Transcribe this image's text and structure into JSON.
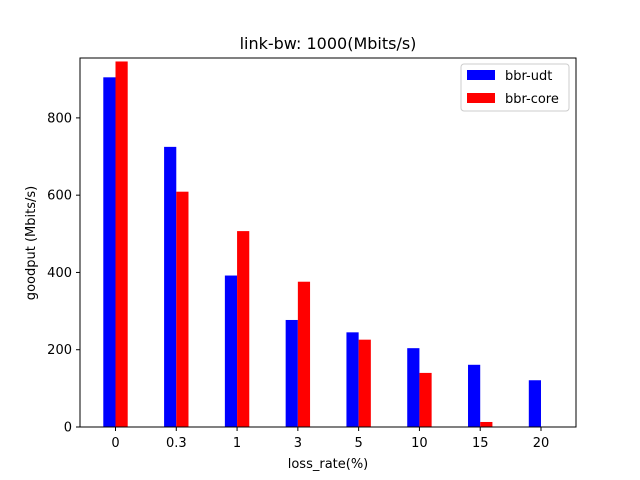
{
  "chart_data": {
    "type": "bar",
    "title": "link-bw: 1000(Mbits/s)",
    "xlabel": "loss_rate(%)",
    "ylabel": "goodput (Mbits/s)",
    "categories": [
      "0",
      "0.3",
      "1",
      "3",
      "5",
      "10",
      "15",
      "20"
    ],
    "ylim": [
      0,
      955
    ],
    "yticks": [
      0,
      200,
      400,
      600,
      800
    ],
    "grid": false,
    "legend_position": "top-right",
    "series": [
      {
        "name": "bbr-udt",
        "color": "#0000ff",
        "values": [
          905,
          725,
          392,
          277,
          245,
          204,
          161,
          121
        ]
      },
      {
        "name": "bbr-core",
        "color": "#ff0000",
        "values": [
          946,
          609,
          507,
          376,
          226,
          140,
          13,
          0
        ]
      }
    ]
  }
}
